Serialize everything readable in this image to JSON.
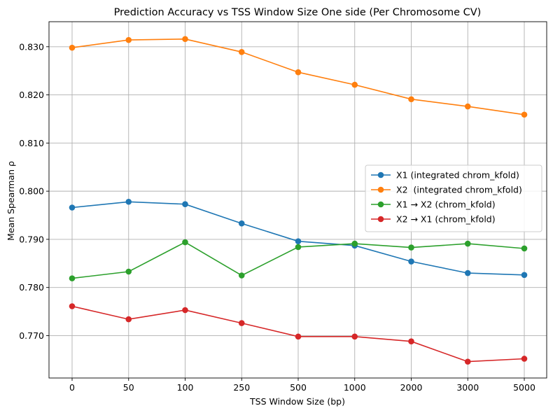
{
  "chart_data": {
    "type": "line",
    "title": "Prediction Accuracy vs TSS Window Size One side (Per Chromosome CV)",
    "xlabel": "TSS Window Size (bp)",
    "ylabel": "Mean Spearman ρ",
    "categories": [
      "0",
      "50",
      "100",
      "250",
      "500",
      "1000",
      "2000",
      "3000",
      "5000"
    ],
    "ylim": [
      0.7612,
      0.8352
    ],
    "yticks": [
      0.77,
      0.78,
      0.79,
      0.8,
      0.81,
      0.82,
      0.83
    ],
    "ytick_labels": [
      "0.770",
      "0.780",
      "0.790",
      "0.800",
      "0.810",
      "0.820",
      "0.830"
    ],
    "grid": true,
    "legend_position": "center-right",
    "series": [
      {
        "name": "X1 (integrated chrom_kfold)",
        "color": "#1f77b4",
        "values": [
          0.7966,
          0.7978,
          0.7973,
          0.7933,
          0.7896,
          0.7887,
          0.7854,
          0.783,
          0.7826
        ]
      },
      {
        "name": "X2  (integrated chrom_kfold)",
        "color": "#ff7f0e",
        "values": [
          0.8298,
          0.8314,
          0.8316,
          0.8289,
          0.8247,
          0.8221,
          0.8191,
          0.8176,
          0.8159
        ]
      },
      {
        "name": "X1 → X2 (chrom_kfold)",
        "color": "#2ca02c",
        "values": [
          0.7819,
          0.7833,
          0.7894,
          0.7825,
          0.7884,
          0.7891,
          0.7883,
          0.7891,
          0.7881
        ]
      },
      {
        "name": "X2 → X1 (chrom_kfold)",
        "color": "#d62728",
        "values": [
          0.7761,
          0.7734,
          0.7753,
          0.7726,
          0.7698,
          0.7698,
          0.7688,
          0.7646,
          0.7652
        ]
      }
    ]
  }
}
